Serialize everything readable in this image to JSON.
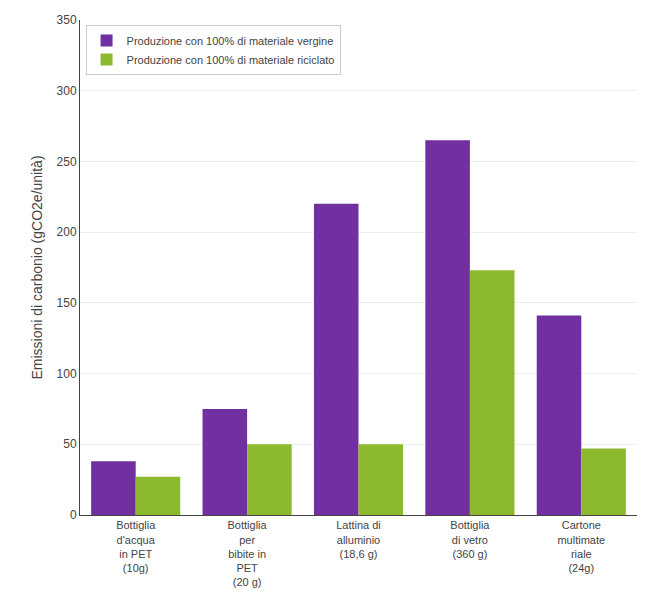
{
  "chart_data": {
    "type": "bar",
    "categories": [
      "Bottiglia\nd'acqua\nin PET\n(10g)",
      "Bottiglia\nper\nbibite in\nPET\n(20 g)",
      "Lattina di\nalluminio\n(18,6 g)",
      "Bottiglia\ndi vetro\n(360 g)",
      "Cartone\nmultimate\nriale\n(24g)"
    ],
    "series": [
      {
        "name": "Produzione con 100% di materiale vergine",
        "color": "#7030a0",
        "values": [
          38,
          75,
          220,
          265,
          141
        ]
      },
      {
        "name": "Produzione con 100% di materiale riciclato",
        "color": "#8db92e",
        "values": [
          27,
          50,
          50,
          173,
          47
        ]
      }
    ],
    "ylabel": "Emissioni di carbonio (gCO2e/unità)",
    "ylim": [
      0,
      350
    ],
    "yticks": [
      0,
      50,
      100,
      150,
      200,
      250,
      300,
      350
    ],
    "grid": true,
    "legend": "upper left"
  }
}
